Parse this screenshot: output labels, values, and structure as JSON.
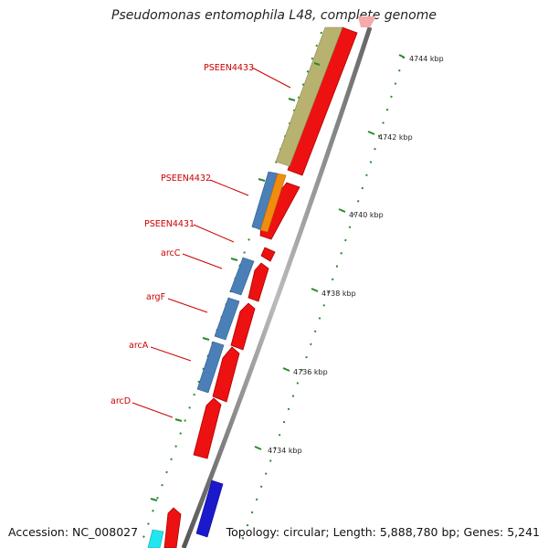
{
  "title": "Pseudomonas entomophila L48, complete genome",
  "footer": {
    "accession": "Accession: NC_008027",
    "summary": "Topology: circular; Length: 5,888,780 bp; Genes: 5,241"
  },
  "scale_unit": "kbp",
  "ticks": [
    {
      "label": "4734 kbp",
      "kbp": 4734
    },
    {
      "label": "4736 kbp",
      "kbp": 4736
    },
    {
      "label": "4738 kbp",
      "kbp": 4738
    },
    {
      "label": "4740 kbp",
      "kbp": 4740
    },
    {
      "label": "4742 kbp",
      "kbp": 4742
    },
    {
      "label": "4744 kbp",
      "kbp": 4744
    }
  ],
  "gene_labels": [
    "PSEEN4433",
    "PSEEN4432",
    "PSEEN4431",
    "arcC",
    "argF",
    "arcA",
    "arcD"
  ],
  "colors": {
    "strand_gene": "#ee1111",
    "cog_blue": "#4a7fb8",
    "cog_olive": "#b7b270",
    "cog_orange": "#f08c10",
    "cog_navy": "#1a1acc",
    "cog_cyan": "#22e6ee",
    "backbone": "#888888",
    "tick": "#2a8a2a",
    "label": "#cc0000"
  }
}
